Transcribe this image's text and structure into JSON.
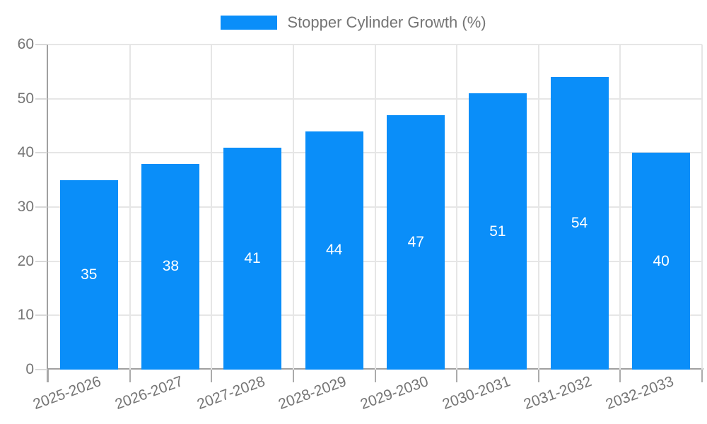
{
  "chart_data": {
    "type": "bar",
    "legend_label": "Stopper Cylinder Growth (%)",
    "legend_position": "top-center",
    "categories": [
      "2025-2026",
      "2026-2027",
      "2027-2028",
      "2028-2029",
      "2029-2030",
      "2030-2031",
      "2031-2032",
      "2032-2033"
    ],
    "values": [
      35,
      38,
      41,
      44,
      47,
      51,
      54,
      40
    ],
    "value_labels": "inside-center-white",
    "xlabel": "",
    "ylabel": "",
    "ylim": [
      0,
      60
    ],
    "yticks": [
      0,
      10,
      20,
      30,
      40,
      50,
      60
    ],
    "grid": "horizontal and vertical light gray",
    "x_label_rotation_deg": -20,
    "colors": {
      "bar": "#0a8ef9",
      "value_text": "#ffffff",
      "axis": "#a0a0a0",
      "y_tick": "#d9d9d9",
      "x_tick": "#ababab",
      "grid": "#e6e6e6",
      "tick_text": "#757575",
      "legend_text": "#757575",
      "background": "#ffffff"
    }
  }
}
